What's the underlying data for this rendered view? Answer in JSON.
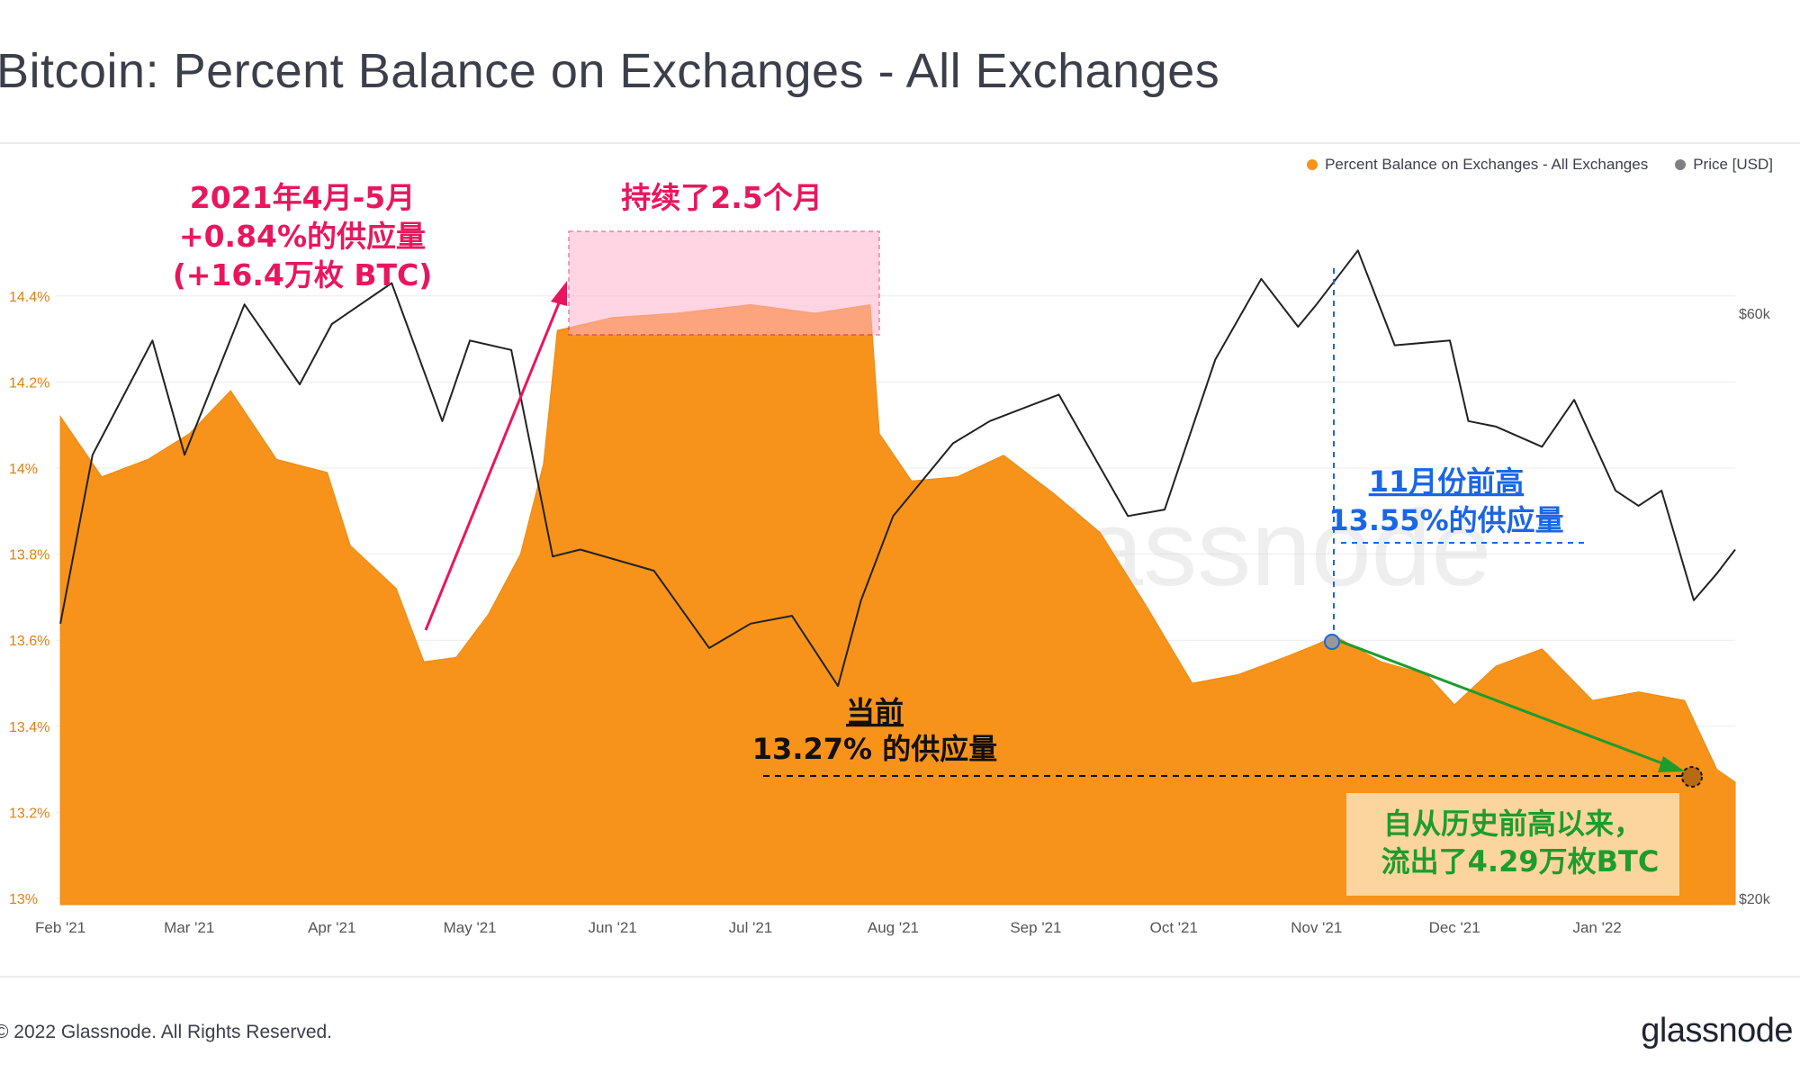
{
  "title": "Bitcoin: Percent Balance on Exchanges - All Exchanges",
  "footer": {
    "copyright": "© 2022 Glassnode. All Rights Reserved.",
    "logo": "glassnode"
  },
  "watermark": "glassnode",
  "legend": [
    {
      "name": "Percent Balance on Exchanges - All Exchanges",
      "color": "#f7931a"
    },
    {
      "name": "Price [USD]",
      "color": "#808080"
    }
  ],
  "colors": {
    "balance": "#f7931a",
    "price": "#222222",
    "pink": "#e8175d",
    "blue": "#1a66e6",
    "green": "#1e9c2e",
    "black": "#111111"
  },
  "annotations": {
    "pink": [
      "2021年4月-5月",
      "+0.84%的供应量",
      "(+16.4万枚 BTC)"
    ],
    "duration": "持续了2.5个月",
    "current": [
      "当前",
      "13.27% 的供应量"
    ],
    "nov_high": [
      "11月份前高",
      "13.55%的供应量"
    ],
    "outflow": [
      "自从历史前高以来，",
      "流出了4.29万枚BTC"
    ]
  },
  "chart_data": {
    "type": "area",
    "x_ticks": [
      "Feb '21",
      "Mar '21",
      "Apr '21",
      "May '21",
      "Jun '21",
      "Jul '21",
      "Aug '21",
      "Sep '21",
      "Oct '21",
      "Nov '21",
      "Dec '21",
      "Jan '22"
    ],
    "y_left": {
      "ticks": [
        "13%",
        "13.2%",
        "13.4%",
        "13.6%",
        "13.8%",
        "14%",
        "14.2%",
        "14.4%"
      ],
      "range": [
        13.0,
        14.5
      ]
    },
    "y_right": {
      "ticks": [
        "$20k",
        "$60k"
      ],
      "scale": "log"
    },
    "grid": true,
    "legend_position": "top-right",
    "series": [
      {
        "name": "Percent Balance on Exchanges - All Exchanges",
        "x": [
          "2021-02-01",
          "2021-02-10",
          "2021-02-20",
          "2021-03-01",
          "2021-03-10",
          "2021-03-20",
          "2021-03-31",
          "2021-04-05",
          "2021-04-15",
          "2021-04-21",
          "2021-04-28",
          "2021-05-05",
          "2021-05-12",
          "2021-05-17",
          "2021-05-20",
          "2021-06-01",
          "2021-06-15",
          "2021-07-01",
          "2021-07-15",
          "2021-07-27",
          "2021-07-29",
          "2021-08-05",
          "2021-08-15",
          "2021-08-25",
          "2021-09-05",
          "2021-09-15",
          "2021-09-25",
          "2021-10-05",
          "2021-10-15",
          "2021-10-25",
          "2021-11-01",
          "2021-11-05",
          "2021-11-15",
          "2021-11-25",
          "2021-12-01",
          "2021-12-10",
          "2021-12-20",
          "2021-12-31",
          "2022-01-10",
          "2022-01-20",
          "2022-01-27",
          "2022-01-31"
        ],
        "values": [
          14.12,
          13.98,
          14.02,
          14.08,
          14.18,
          14.02,
          13.99,
          13.82,
          13.72,
          13.55,
          13.56,
          13.66,
          13.8,
          14.01,
          14.32,
          14.35,
          14.36,
          14.38,
          14.36,
          14.38,
          14.08,
          13.97,
          13.98,
          14.03,
          13.94,
          13.85,
          13.68,
          13.5,
          13.52,
          13.56,
          13.59,
          13.61,
          13.55,
          13.52,
          13.45,
          13.54,
          13.58,
          13.46,
          13.48,
          13.46,
          13.3,
          13.27
        ]
      },
      {
        "name": "Price [USD]",
        "x": [
          "2021-02-01",
          "2021-02-08",
          "2021-02-21",
          "2021-02-28",
          "2021-03-13",
          "2021-03-25",
          "2021-04-01",
          "2021-04-14",
          "2021-04-25",
          "2021-05-01",
          "2021-05-10",
          "2021-05-19",
          "2021-05-25",
          "2021-06-10",
          "2021-06-22",
          "2021-07-01",
          "2021-07-10",
          "2021-07-20",
          "2021-07-25",
          "2021-08-01",
          "2021-08-14",
          "2021-08-22",
          "2021-09-06",
          "2021-09-21",
          "2021-09-29",
          "2021-10-10",
          "2021-10-20",
          "2021-10-28",
          "2021-11-01",
          "2021-11-10",
          "2021-11-18",
          "2021-11-30",
          "2021-12-04",
          "2021-12-10",
          "2021-12-20",
          "2021-12-27",
          "2022-01-05",
          "2022-01-10",
          "2022-01-15",
          "2022-01-22",
          "2022-01-27",
          "2022-01-31"
        ],
        "values": [
          33500,
          46000,
          57000,
          46000,
          61000,
          52500,
          58800,
          63500,
          49000,
          57000,
          56000,
          38000,
          38500,
          37000,
          32000,
          33500,
          34000,
          29800,
          35000,
          41000,
          47000,
          49000,
          51500,
          41000,
          41500,
          55000,
          64000,
          58500,
          61000,
          67500,
          56500,
          57000,
          49000,
          48500,
          46700,
          51000,
          43000,
          41800,
          43000,
          35000,
          36800,
          38500
        ]
      }
    ]
  }
}
